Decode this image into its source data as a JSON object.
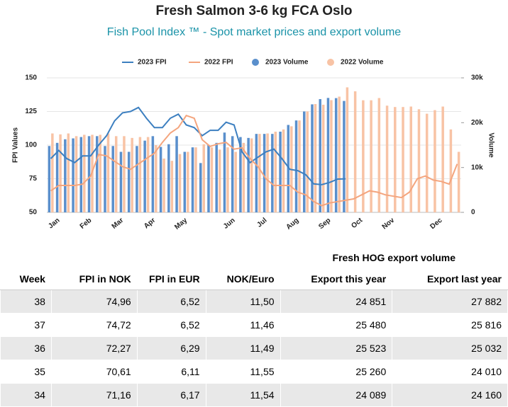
{
  "chart_data": {
    "type": "bar",
    "title": "Fresh Salmon 3-6 kg FCA Oslo",
    "subtitle": "Fish Pool Index ™ - Spot market prices and export volume",
    "ylabel": "FPI Values",
    "y2label": "Volume",
    "categories": [
      null,
      "Jan",
      null,
      null,
      null,
      "Feb",
      null,
      null,
      null,
      "Mar",
      null,
      null,
      null,
      "Apr",
      null,
      null,
      null,
      "May",
      null,
      null,
      null,
      null,
      null,
      "Jun",
      null,
      null,
      null,
      "Jul",
      null,
      null,
      null,
      "Aug",
      null,
      null,
      null,
      "Sep",
      null,
      null,
      null,
      "Oct",
      null,
      null,
      null,
      "Nov",
      null,
      null,
      null,
      null,
      null,
      "Dec",
      null,
      null
    ],
    "ylim": [
      50,
      150
    ],
    "yticks": [
      50,
      75,
      100,
      125,
      150
    ],
    "y2lim": [
      0,
      30000
    ],
    "y2ticks": [
      0,
      {
        "value": 10000,
        "label": "10k"
      },
      {
        "value": 20000,
        "label": "20k"
      },
      {
        "value": 30000,
        "label": "30k"
      }
    ],
    "series": [
      {
        "name": "2023 FPI",
        "type": "line",
        "color": "#3c7fc0",
        "values": [
          90,
          96,
          90,
          87,
          92,
          92,
          100,
          107,
          118,
          124,
          125,
          128,
          120,
          113,
          113,
          120,
          123,
          115,
          113,
          107,
          111,
          111,
          117,
          115,
          95,
          87,
          91,
          95,
          97,
          90,
          82,
          81,
          78,
          71.16,
          70.61,
          72.27,
          74.72,
          74.96,
          null,
          null,
          null,
          null,
          null,
          null,
          null,
          null,
          null,
          null,
          null,
          null,
          null,
          null
        ]
      },
      {
        "name": "2022 FPI",
        "type": "line",
        "color": "#f4a57e",
        "values": [
          66,
          70,
          70,
          70,
          71,
          77,
          93,
          92,
          88,
          84,
          82,
          86,
          90,
          94,
          102,
          109,
          113,
          122,
          120,
          104,
          99,
          101,
          102,
          97,
          98,
          90,
          84,
          75,
          70,
          70,
          70,
          65,
          63,
          58,
          55,
          57,
          58,
          59,
          60,
          63,
          66,
          65,
          63,
          62,
          61,
          65,
          75,
          77,
          74,
          73,
          71,
          86
        ]
      },
      {
        "name": "2023 Volume",
        "type": "bar",
        "axis": "y2",
        "color": "#5a8fcc",
        "values": [
          14800,
          15500,
          16300,
          16500,
          16800,
          17000,
          17000,
          14800,
          14800,
          13500,
          13500,
          14800,
          16000,
          17000,
          14600,
          15200,
          17000,
          13500,
          14500,
          11000,
          15000,
          15500,
          17800,
          17000,
          16800,
          16600,
          17500,
          17500,
          17500,
          18000,
          19500,
          20500,
          22500,
          24089,
          25260,
          25523,
          25480,
          24851,
          null,
          null,
          null,
          null,
          null,
          null,
          null,
          null,
          null,
          null,
          null,
          null,
          null,
          null
        ]
      },
      {
        "name": "2022 Volume",
        "type": "bar",
        "axis": "y2",
        "color": "#f8c3a5",
        "values": [
          17600,
          17400,
          17600,
          17000,
          17300,
          17300,
          17300,
          17600,
          17000,
          17000,
          16600,
          16800,
          16800,
          15000,
          12000,
          11500,
          13000,
          13500,
          14500,
          15200,
          14500,
          14000,
          14500,
          13500,
          15500,
          16500,
          17500,
          17600,
          18000,
          18500,
          19200,
          20500,
          22500,
          24160,
          24010,
          25032,
          25816,
          27882,
          27000,
          25000,
          25000,
          25500,
          23800,
          23500,
          23500,
          23600,
          23000,
          22000,
          22800,
          23600,
          18500,
          13500
        ]
      }
    ]
  },
  "table": {
    "group_header": "Fresh HOG export volume",
    "columns": [
      "Week",
      "FPI in NOK",
      "FPI in EUR",
      "NOK/Euro",
      "Export this year",
      "Export last year"
    ],
    "rows": [
      [
        "38",
        "74,96",
        "6,52",
        "11,50",
        "24 851",
        "27 882"
      ],
      [
        "37",
        "74,72",
        "6,52",
        "11,46",
        "25 480",
        "25 816"
      ],
      [
        "36",
        "72,27",
        "6,29",
        "11,49",
        "25 523",
        "25 032"
      ],
      [
        "35",
        "70,61",
        "6,11",
        "11,55",
        "25 260",
        "24 010"
      ],
      [
        "34",
        "71,16",
        "6,17",
        "11,54",
        "24 089",
        "24 160"
      ]
    ]
  }
}
